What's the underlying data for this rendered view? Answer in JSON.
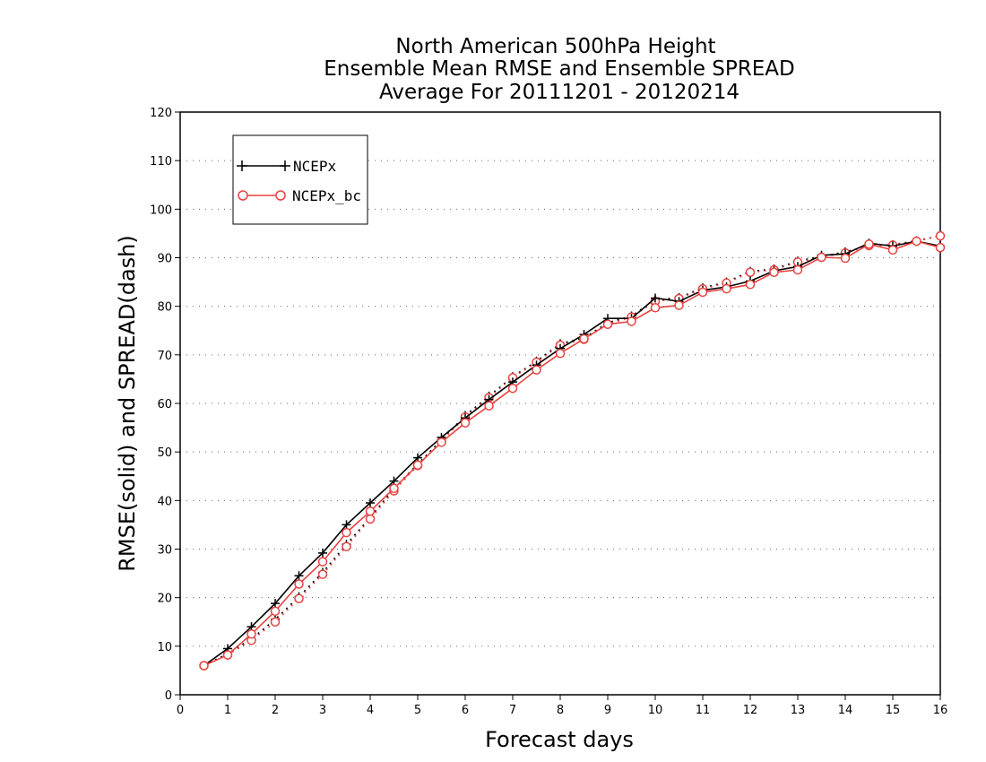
{
  "chart_data": {
    "type": "line",
    "title": [
      "North American 500hPa Height",
      "Ensemble Mean RMSE and Ensemble SPREAD",
      "Average For 20111201 - 20120214"
    ],
    "xlabel": "Forecast days",
    "ylabel": "RMSE(solid) and SPREAD(dash)",
    "xlim": [
      0,
      16
    ],
    "ylim": [
      0,
      120
    ],
    "xticks": [
      "0",
      "1",
      "2",
      "3",
      "4",
      "5",
      "6",
      "7",
      "8",
      "9",
      "10",
      "11",
      "12",
      "13",
      "14",
      "15",
      "16"
    ],
    "yticks": [
      "0",
      "10",
      "20",
      "30",
      "40",
      "50",
      "60",
      "70",
      "80",
      "90",
      "100",
      "110",
      "120"
    ],
    "grid": "horizontal dotted",
    "legend_position": "top-left",
    "x": [
      0.5,
      1,
      1.5,
      2,
      2.5,
      3,
      3.5,
      4,
      4.5,
      5,
      5.5,
      6,
      6.5,
      7,
      7.5,
      8,
      8.5,
      9,
      9.5,
      10,
      10.5,
      11,
      11.5,
      12,
      12.5,
      13,
      13.5,
      14,
      14.5,
      15,
      15.5,
      16
    ],
    "series": [
      {
        "name": "NCEPx",
        "metric": "RMSE",
        "style": "solid",
        "color": "#000000",
        "marker": "plus",
        "values": [
          6,
          9.5,
          14,
          18.8,
          24.5,
          29.2,
          35,
          39.5,
          44,
          48.8,
          53,
          57,
          60.8,
          64.4,
          67.9,
          71.3,
          74.2,
          77.5,
          77.5,
          81.7,
          81,
          83.3,
          84,
          85.2,
          87.3,
          88.2,
          90.5,
          90.8,
          93,
          92.4,
          93.4,
          92.4
        ]
      },
      {
        "name": "NCEPx_bc",
        "metric": "RMSE",
        "style": "solid",
        "color": "#e8423f",
        "marker": "circle",
        "values": [
          6,
          8.2,
          12.5,
          17.2,
          22.8,
          27.4,
          33.4,
          37.8,
          42.5,
          47.3,
          52,
          56,
          59.5,
          63.1,
          66.9,
          70.3,
          73.3,
          76.3,
          76.9,
          79.7,
          80.2,
          82.9,
          83.6,
          84.5,
          87,
          87.5,
          90.1,
          89.9,
          92.8,
          91.6,
          93.4,
          92.1
        ]
      },
      {
        "name": "NCEPx",
        "metric": "SPREAD",
        "style": "dash",
        "color": "#000000",
        "marker": "plus",
        "values": [
          6,
          8.5,
          11.5,
          15.5,
          20.2,
          25.2,
          31,
          36.5,
          42.5,
          47.5,
          52.5,
          57.5,
          61.5,
          65.5,
          68.7,
          72.3,
          73.5,
          76.6,
          78,
          81.3,
          81.8,
          83.8,
          85,
          87.2,
          87.7,
          89.3,
          90.3,
          91.2,
          92.5,
          92.7,
          93.5,
          94.5
        ]
      },
      {
        "name": "NCEPx_bc",
        "metric": "SPREAD",
        "style": "dash",
        "color": "#e8423f",
        "marker": "circle",
        "values": [
          6,
          8.2,
          11.2,
          15,
          19.8,
          24.8,
          30.5,
          36.2,
          42,
          47.2,
          52.2,
          57.2,
          61.2,
          65.3,
          68.5,
          72,
          73.2,
          76.3,
          77.8,
          81,
          81.6,
          83.6,
          84.8,
          87,
          87.5,
          89.1,
          90.1,
          91,
          92.5,
          92.6,
          93.4,
          94.5
        ]
      }
    ]
  }
}
